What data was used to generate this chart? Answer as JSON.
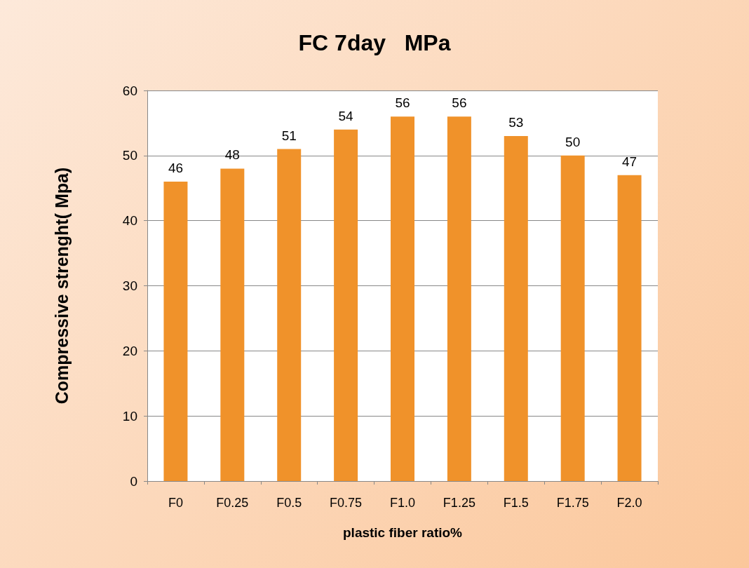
{
  "chart_data": {
    "type": "bar",
    "title": "FC 7day   MPa",
    "xlabel": "plastic fiber ratio%",
    "ylabel": "Compressive strenght( Mpa)",
    "categories": [
      "F0",
      "F0.25",
      "F0.5",
      "F0.75",
      "F1.0",
      "F1.25",
      "F1.5",
      "F1.75",
      "F2.0"
    ],
    "values": [
      46,
      48,
      51,
      54,
      56,
      56,
      53,
      50,
      47
    ],
    "color": "#f0922a",
    "ylim": [
      0,
      60
    ],
    "yticks": [
      0,
      10,
      20,
      30,
      40,
      50,
      60
    ],
    "grid": "y",
    "data_labels": true
  }
}
